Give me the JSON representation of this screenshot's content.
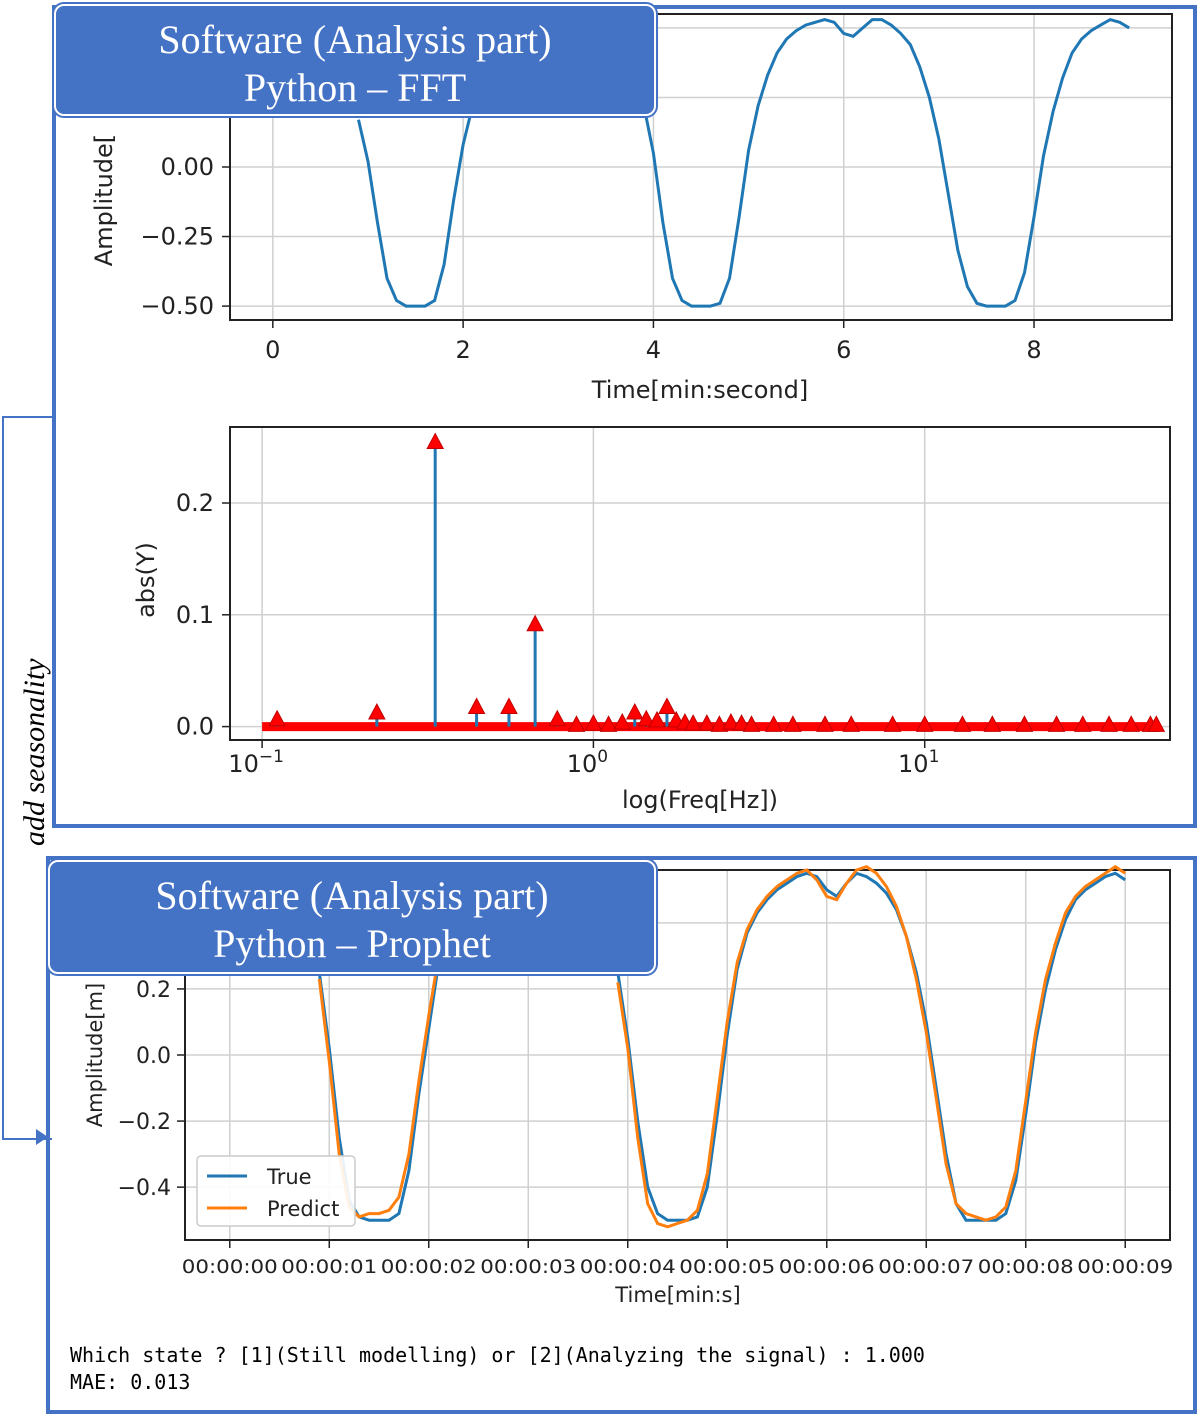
{
  "panels": {
    "top_label_line1": "Software (Analysis part)",
    "top_label_line2": "Python – FFT",
    "bottom_label_line1": "Software (Analysis part)",
    "bottom_label_line2": "Python – Prophet",
    "side_label": "add seasonality"
  },
  "console": {
    "line1": "Which state ? [1](Still modelling) or [2](Analyzing the signal) : 1.000",
    "line2": "MAE: 0.013"
  },
  "colors": {
    "panel_border": "#4472c4",
    "true_series": "#1f77b4",
    "predict_series": "#ff7f0e",
    "marker": "#ff0000"
  },
  "chart_data": [
    {
      "type": "line",
      "xlabel": "Time[min:second]",
      "ylabel": "Amplitude[",
      "xlim": [
        -0.45,
        9.45
      ],
      "ylim": [
        -0.55,
        0.55
      ],
      "xticks": [
        0,
        2,
        4,
        6,
        8
      ],
      "yticks": [
        0.0,
        -0.25,
        -0.5
      ],
      "ytick_labels": [
        "0.00",
        "−0.25",
        "−0.50"
      ],
      "grid": true,
      "x": [
        0.9,
        1.0,
        1.1,
        1.2,
        1.3,
        1.4,
        1.5,
        1.6,
        1.7,
        1.8,
        1.9,
        2.0,
        2.1,
        3.9,
        4.0,
        4.1,
        4.2,
        4.3,
        4.4,
        4.5,
        4.6,
        4.7,
        4.8,
        4.9,
        5.0,
        5.1,
        5.2,
        5.3,
        5.4,
        5.5,
        5.6,
        5.7,
        5.8,
        5.9,
        6.0,
        6.1,
        6.2,
        6.3,
        6.4,
        6.5,
        6.6,
        6.7,
        6.8,
        6.9,
        7.0,
        7.1,
        7.2,
        7.3,
        7.4,
        7.5,
        7.6,
        7.7,
        7.8,
        7.9,
        8.0,
        8.1,
        8.2,
        8.3,
        8.4,
        8.5,
        8.6,
        8.7,
        8.8,
        8.9,
        9.0
      ],
      "y": [
        0.17,
        0.02,
        -0.2,
        -0.4,
        -0.48,
        -0.5,
        -0.5,
        -0.5,
        -0.48,
        -0.35,
        -0.12,
        0.08,
        0.22,
        0.22,
        0.05,
        -0.2,
        -0.4,
        -0.48,
        -0.5,
        -0.5,
        -0.5,
        -0.49,
        -0.4,
        -0.18,
        0.06,
        0.22,
        0.33,
        0.41,
        0.46,
        0.49,
        0.51,
        0.52,
        0.53,
        0.52,
        0.48,
        0.47,
        0.5,
        0.53,
        0.53,
        0.51,
        0.48,
        0.44,
        0.36,
        0.25,
        0.1,
        -0.1,
        -0.3,
        -0.43,
        -0.49,
        -0.5,
        -0.5,
        -0.5,
        -0.48,
        -0.38,
        -0.18,
        0.04,
        0.2,
        0.32,
        0.41,
        0.46,
        0.49,
        0.51,
        0.53,
        0.52,
        0.5
      ]
    },
    {
      "type": "stem",
      "xlabel": "log(Freq[Hz])",
      "ylabel": "abs(Y)",
      "xscale": "log",
      "xlim": [
        0.08,
        55
      ],
      "ylim": [
        -0.012,
        0.268
      ],
      "xtick_labels": [
        "10−1",
        "100",
        "101"
      ],
      "xticks": [
        0.1,
        1,
        10
      ],
      "yticks": [
        0.0,
        0.1,
        0.2
      ],
      "ytick_labels": [
        "0.0",
        "0.1",
        "0.2"
      ],
      "grid": true,
      "x": [
        0.111,
        0.222,
        0.333,
        0.444,
        0.556,
        0.667,
        0.778,
        0.889,
        1.0,
        1.111,
        1.222,
        1.333,
        1.444,
        1.556,
        1.667,
        1.778,
        1.889,
        2.0,
        2.2,
        2.4,
        2.6,
        2.8,
        3.0,
        3.5,
        4.0,
        5.0,
        6.0,
        8.0,
        10.0,
        13.0,
        16.0,
        20.0,
        25.0,
        30.0,
        36.0,
        42.0,
        48.0,
        50.0
      ],
      "values": [
        0.007,
        0.013,
        0.255,
        0.018,
        0.018,
        0.092,
        0.007,
        0.002,
        0.003,
        0.002,
        0.004,
        0.013,
        0.007,
        0.006,
        0.018,
        0.006,
        0.004,
        0.003,
        0.003,
        0.002,
        0.004,
        0.003,
        0.002,
        0.002,
        0.002,
        0.002,
        0.002,
        0.002,
        0.002,
        0.002,
        0.002,
        0.002,
        0.002,
        0.002,
        0.002,
        0.002,
        0.002,
        0.002
      ]
    },
    {
      "type": "line",
      "xlabel": "Time[min:s]",
      "ylabel": "Amplitude[m]",
      "xlim": [
        -0.45,
        9.45
      ],
      "ylim": [
        -0.56,
        0.56
      ],
      "xtick_labels": [
        "00:00:00",
        "00:00:01",
        "00:00:02",
        "00:00:03",
        "00:00:04",
        "00:00:05",
        "00:00:06",
        "00:00:07",
        "00:00:08",
        "00:00:09"
      ],
      "yticks": [
        0.2,
        0.0,
        -0.2,
        -0.4
      ],
      "ytick_labels": [
        "0.2",
        "0.0",
        "−0.2",
        "−0.4"
      ],
      "grid": true,
      "legend": "lower-left",
      "x": [
        0.9,
        1.0,
        1.1,
        1.2,
        1.3,
        1.4,
        1.5,
        1.6,
        1.7,
        1.8,
        1.9,
        2.0,
        2.1,
        3.9,
        4.0,
        4.1,
        4.2,
        4.3,
        4.4,
        4.5,
        4.6,
        4.7,
        4.8,
        4.9,
        5.0,
        5.1,
        5.2,
        5.3,
        5.4,
        5.5,
        5.6,
        5.7,
        5.8,
        5.9,
        6.0,
        6.1,
        6.2,
        6.3,
        6.4,
        6.5,
        6.6,
        6.7,
        6.8,
        6.9,
        7.0,
        7.1,
        7.2,
        7.3,
        7.4,
        7.5,
        7.6,
        7.7,
        7.8,
        7.9,
        8.0,
        8.1,
        8.2,
        8.3,
        8.4,
        8.5,
        8.6,
        8.7,
        8.8,
        8.9,
        9.0
      ],
      "series": [
        {
          "name": "True",
          "values": [
            0.25,
            0.02,
            -0.25,
            -0.44,
            -0.49,
            -0.5,
            -0.5,
            -0.5,
            -0.48,
            -0.35,
            -0.12,
            0.08,
            0.28,
            0.25,
            0.05,
            -0.2,
            -0.4,
            -0.48,
            -0.5,
            -0.5,
            -0.5,
            -0.49,
            -0.4,
            -0.18,
            0.06,
            0.26,
            0.37,
            0.43,
            0.47,
            0.5,
            0.52,
            0.54,
            0.55,
            0.54,
            0.5,
            0.48,
            0.52,
            0.55,
            0.54,
            0.52,
            0.49,
            0.44,
            0.36,
            0.25,
            0.1,
            -0.1,
            -0.3,
            -0.45,
            -0.5,
            -0.5,
            -0.5,
            -0.5,
            -0.48,
            -0.38,
            -0.18,
            0.04,
            0.2,
            0.32,
            0.41,
            0.47,
            0.5,
            0.52,
            0.54,
            0.55,
            0.53
          ]
        },
        {
          "name": "Predict",
          "values": [
            0.23,
            -0.02,
            -0.3,
            -0.46,
            -0.49,
            -0.48,
            -0.48,
            -0.47,
            -0.43,
            -0.3,
            -0.08,
            0.12,
            0.3,
            0.22,
            0.02,
            -0.25,
            -0.45,
            -0.51,
            -0.52,
            -0.51,
            -0.5,
            -0.47,
            -0.36,
            -0.13,
            0.1,
            0.28,
            0.38,
            0.44,
            0.48,
            0.51,
            0.53,
            0.55,
            0.56,
            0.53,
            0.48,
            0.47,
            0.52,
            0.56,
            0.57,
            0.55,
            0.51,
            0.45,
            0.36,
            0.23,
            0.07,
            -0.13,
            -0.33,
            -0.45,
            -0.48,
            -0.49,
            -0.5,
            -0.49,
            -0.46,
            -0.35,
            -0.14,
            0.07,
            0.23,
            0.34,
            0.43,
            0.48,
            0.51,
            0.53,
            0.55,
            0.57,
            0.55
          ]
        }
      ]
    }
  ]
}
